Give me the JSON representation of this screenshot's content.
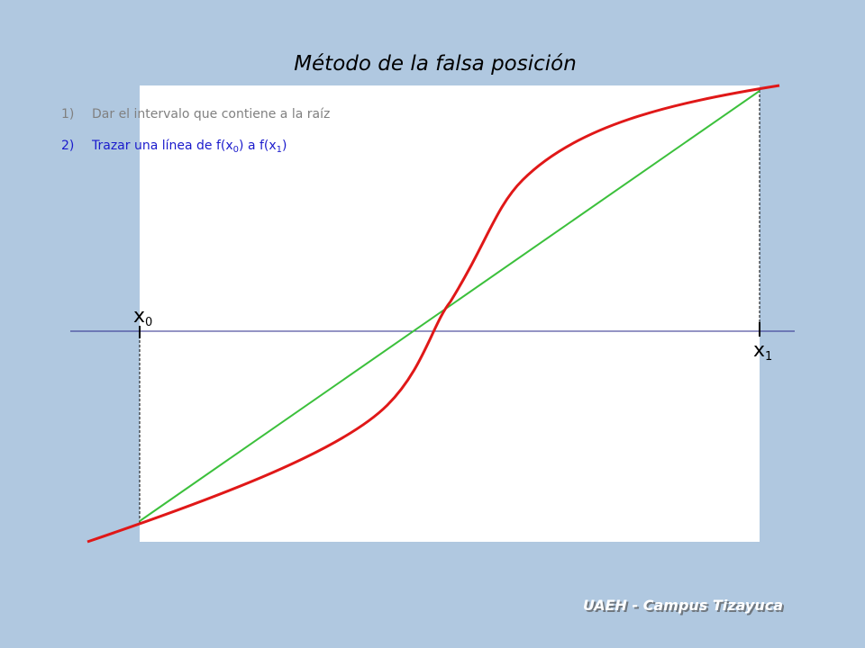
{
  "title": "Método de la falsa posición",
  "steps": [
    {
      "number": "1)",
      "text": "Dar el intervalo que contiene a la raíz"
    },
    {
      "number": "2)",
      "parts": [
        "Trazar una línea de f(x",
        "0",
        ") a f(x",
        "1",
        ")"
      ]
    }
  ],
  "axis_labels": [
    {
      "base": "x",
      "sub": "0"
    },
    {
      "base": "x",
      "sub": "1"
    }
  ],
  "footer": "UAEH - Campus Tizayuca"
}
